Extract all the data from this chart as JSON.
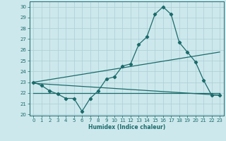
{
  "xlabel": "Humidex (Indice chaleur)",
  "background_color": "#cde8ec",
  "grid_color": "#aacdd4",
  "line_color": "#1a6b6b",
  "xlim": [
    -0.5,
    23.5
  ],
  "ylim": [
    19.9,
    30.5
  ],
  "yticks": [
    20,
    21,
    22,
    23,
    24,
    25,
    26,
    27,
    28,
    29,
    30
  ],
  "xticks": [
    0,
    1,
    2,
    3,
    4,
    5,
    6,
    7,
    8,
    9,
    10,
    11,
    12,
    13,
    14,
    15,
    16,
    17,
    18,
    19,
    20,
    21,
    22,
    23
  ],
  "main_line_x": [
    0,
    1,
    2,
    3,
    4,
    5,
    6,
    7,
    8,
    9,
    10,
    11,
    12,
    13,
    14,
    15,
    16,
    17,
    18,
    19,
    20,
    21,
    22,
    23
  ],
  "main_line_y": [
    23.0,
    22.7,
    22.2,
    21.9,
    21.5,
    21.5,
    20.3,
    21.5,
    22.2,
    23.3,
    23.5,
    24.5,
    24.7,
    26.5,
    27.2,
    29.3,
    30.0,
    29.3,
    26.7,
    25.8,
    24.9,
    23.2,
    21.8,
    21.8
  ],
  "line2_x": [
    0,
    23
  ],
  "line2_y": [
    22.9,
    21.8
  ],
  "line3_x": [
    0,
    23
  ],
  "line3_y": [
    23.0,
    25.8
  ],
  "line4_x": [
    0,
    23
  ],
  "line4_y": [
    22.0,
    22.0
  ]
}
